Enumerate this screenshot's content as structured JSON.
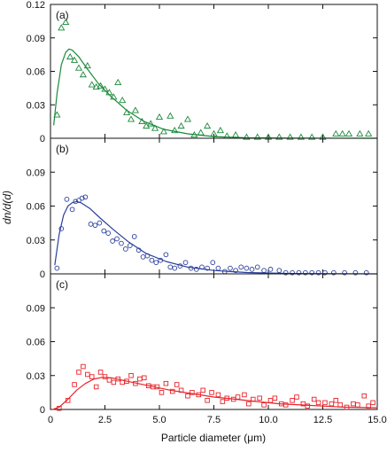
{
  "chart_data": {
    "type": "scatter",
    "xlabel": "Particle diameter (μm)",
    "ylabel": "dn/d(d)",
    "xlim": [
      0,
      15
    ],
    "ylim": [
      0,
      0.12
    ],
    "x_ticks": [
      0,
      2.5,
      5.0,
      7.5,
      10.0,
      12.5,
      15.0
    ],
    "x_tick_labels": [
      "0",
      "2.5",
      "5.0",
      "7.5",
      "10.0",
      "12.5",
      "15.0"
    ],
    "grid": false,
    "panels": [
      {
        "label": "(a)",
        "marker": "triangle",
        "color": "#1a8a3a",
        "y_ticks": [
          0,
          0.03,
          0.06,
          0.09,
          0.12
        ],
        "y_tick_labels": [
          "0",
          "0.03",
          "0.06",
          "0.09",
          "0.12"
        ],
        "points": [
          [
            0.3,
            0.021
          ],
          [
            0.5,
            0.099
          ],
          [
            0.7,
            0.104
          ],
          [
            0.9,
            0.073
          ],
          [
            1.1,
            0.07
          ],
          [
            1.3,
            0.063
          ],
          [
            1.5,
            0.057
          ],
          [
            1.7,
            0.065
          ],
          [
            1.9,
            0.048
          ],
          [
            2.1,
            0.046
          ],
          [
            2.3,
            0.047
          ],
          [
            2.5,
            0.044
          ],
          [
            2.7,
            0.041
          ],
          [
            2.9,
            0.037
          ],
          [
            3.1,
            0.05
          ],
          [
            3.3,
            0.034
          ],
          [
            3.5,
            0.023
          ],
          [
            3.7,
            0.017
          ],
          [
            3.9,
            0.025
          ],
          [
            4.2,
            0.015
          ],
          [
            4.4,
            0.011
          ],
          [
            4.6,
            0.013
          ],
          [
            4.8,
            0.009
          ],
          [
            5.0,
            0.019
          ],
          [
            5.2,
            0.006
          ],
          [
            5.5,
            0.02
          ],
          [
            5.7,
            0.007
          ],
          [
            6.0,
            0.011
          ],
          [
            6.3,
            0.017
          ],
          [
            6.6,
            0.003
          ],
          [
            6.9,
            0.005
          ],
          [
            7.2,
            0.011
          ],
          [
            7.5,
            0.004
          ],
          [
            7.8,
            0.007
          ],
          [
            8.1,
            0.002
          ],
          [
            8.5,
            0.003
          ],
          [
            9.0,
            0.001
          ],
          [
            9.5,
            0.001
          ],
          [
            10.0,
            0.001
          ],
          [
            10.5,
            0.001
          ],
          [
            11.0,
            0.001
          ],
          [
            11.5,
            0.001
          ],
          [
            12.0,
            0.001
          ],
          [
            12.5,
            0.001
          ],
          [
            13.1,
            0.004
          ],
          [
            13.4,
            0.004
          ],
          [
            13.7,
            0.004
          ],
          [
            14.2,
            0.004
          ],
          [
            14.6,
            0.004
          ]
        ],
        "fit": [
          [
            0.15,
            0.012
          ],
          [
            0.3,
            0.04
          ],
          [
            0.5,
            0.066
          ],
          [
            0.7,
            0.077
          ],
          [
            0.85,
            0.08
          ],
          [
            1.0,
            0.079
          ],
          [
            1.3,
            0.073
          ],
          [
            1.7,
            0.062
          ],
          [
            2.2,
            0.049
          ],
          [
            2.8,
            0.037
          ],
          [
            3.5,
            0.025
          ],
          [
            4.3,
            0.015
          ],
          [
            5.2,
            0.008
          ],
          [
            6.3,
            0.004
          ],
          [
            7.5,
            0.0015
          ],
          [
            9.0,
            0.0004
          ],
          [
            11.0,
            0.0001
          ],
          [
            15.0,
            0.0
          ]
        ]
      },
      {
        "label": "(b)",
        "marker": "circle",
        "color": "#2a3f9c",
        "y_ticks": [
          0,
          0.03,
          0.06,
          0.09
        ],
        "y_tick_labels": [
          "0",
          "0.03",
          "0.06",
          "0.09"
        ],
        "points": [
          [
            0.3,
            0.005
          ],
          [
            0.5,
            0.04
          ],
          [
            0.75,
            0.066
          ],
          [
            1.0,
            0.057
          ],
          [
            1.15,
            0.064
          ],
          [
            1.3,
            0.065
          ],
          [
            1.45,
            0.067
          ],
          [
            1.6,
            0.068
          ],
          [
            1.85,
            0.044
          ],
          [
            2.05,
            0.043
          ],
          [
            2.25,
            0.045
          ],
          [
            2.45,
            0.038
          ],
          [
            2.65,
            0.036
          ],
          [
            2.85,
            0.029
          ],
          [
            3.05,
            0.031
          ],
          [
            3.25,
            0.027
          ],
          [
            3.45,
            0.022
          ],
          [
            3.65,
            0.025
          ],
          [
            3.85,
            0.033
          ],
          [
            4.05,
            0.021
          ],
          [
            4.25,
            0.015
          ],
          [
            4.45,
            0.016
          ],
          [
            4.65,
            0.012
          ],
          [
            4.85,
            0.01
          ],
          [
            5.05,
            0.012
          ],
          [
            5.3,
            0.017
          ],
          [
            5.5,
            0.006
          ],
          [
            5.7,
            0.005
          ],
          [
            5.95,
            0.007
          ],
          [
            6.2,
            0.01
          ],
          [
            6.45,
            0.005
          ],
          [
            6.7,
            0.004
          ],
          [
            6.95,
            0.006
          ],
          [
            7.2,
            0.005
          ],
          [
            7.45,
            0.01
          ],
          [
            7.7,
            0.005
          ],
          [
            8.0,
            0.002
          ],
          [
            8.25,
            0.005
          ],
          [
            8.5,
            0.003
          ],
          [
            8.75,
            0.006
          ],
          [
            9.0,
            0.005
          ],
          [
            9.25,
            0.004
          ],
          [
            9.5,
            0.006
          ],
          [
            9.8,
            0.003
          ],
          [
            10.1,
            0.004
          ],
          [
            10.5,
            0.003
          ],
          [
            10.8,
            0.001
          ],
          [
            11.1,
            0.001
          ],
          [
            11.4,
            0.001
          ],
          [
            11.7,
            0.001
          ],
          [
            12.0,
            0.001
          ],
          [
            12.3,
            0.001
          ],
          [
            12.6,
            0.001
          ],
          [
            13.0,
            0.001
          ],
          [
            13.5,
            0.001
          ],
          [
            14.0,
            0.001
          ],
          [
            14.5,
            0.001
          ]
        ],
        "fit": [
          [
            0.2,
            0.008
          ],
          [
            0.4,
            0.035
          ],
          [
            0.6,
            0.052
          ],
          [
            0.8,
            0.06
          ],
          [
            1.0,
            0.063
          ],
          [
            1.2,
            0.064
          ],
          [
            1.4,
            0.063
          ],
          [
            1.8,
            0.058
          ],
          [
            2.3,
            0.049
          ],
          [
            2.9,
            0.039
          ],
          [
            3.6,
            0.028
          ],
          [
            4.4,
            0.018
          ],
          [
            5.3,
            0.011
          ],
          [
            6.3,
            0.006
          ],
          [
            7.5,
            0.003
          ],
          [
            9.0,
            0.0012
          ],
          [
            11.0,
            0.0003
          ],
          [
            15.0,
            0.0
          ]
        ]
      },
      {
        "label": "(c)",
        "marker": "square",
        "color": "#e8232a",
        "y_ticks": [
          0,
          0.03,
          0.06,
          0.09
        ],
        "y_tick_labels": [
          "0",
          "0.03",
          "0.06",
          "0.09"
        ],
        "points": [
          [
            0.4,
            0.001
          ],
          [
            0.8,
            0.008
          ],
          [
            1.1,
            0.022
          ],
          [
            1.3,
            0.033
          ],
          [
            1.5,
            0.038
          ],
          [
            1.7,
            0.031
          ],
          [
            1.9,
            0.029
          ],
          [
            2.1,
            0.02
          ],
          [
            2.3,
            0.033
          ],
          [
            2.5,
            0.029
          ],
          [
            2.7,
            0.026
          ],
          [
            2.9,
            0.024
          ],
          [
            3.1,
            0.027
          ],
          [
            3.3,
            0.024
          ],
          [
            3.5,
            0.025
          ],
          [
            3.7,
            0.03
          ],
          [
            3.9,
            0.023
          ],
          [
            4.1,
            0.027
          ],
          [
            4.3,
            0.028
          ],
          [
            4.5,
            0.021
          ],
          [
            4.7,
            0.02
          ],
          [
            4.9,
            0.02
          ],
          [
            5.1,
            0.015
          ],
          [
            5.3,
            0.023
          ],
          [
            5.6,
            0.016
          ],
          [
            5.8,
            0.022
          ],
          [
            6.0,
            0.017
          ],
          [
            6.3,
            0.012
          ],
          [
            6.5,
            0.015
          ],
          [
            6.8,
            0.013
          ],
          [
            7.0,
            0.017
          ],
          [
            7.2,
            0.008
          ],
          [
            7.4,
            0.015
          ],
          [
            7.7,
            0.013
          ],
          [
            7.9,
            0.007
          ],
          [
            8.1,
            0.01
          ],
          [
            8.4,
            0.009
          ],
          [
            8.6,
            0.011
          ],
          [
            8.9,
            0.013
          ],
          [
            9.1,
            0.005
          ],
          [
            9.3,
            0.009
          ],
          [
            9.6,
            0.01
          ],
          [
            9.8,
            0.004
          ],
          [
            10.1,
            0.008
          ],
          [
            10.3,
            0.01
          ],
          [
            10.6,
            0.005
          ],
          [
            10.8,
            0.004
          ],
          [
            11.1,
            0.008
          ],
          [
            11.3,
            0.011
          ],
          [
            11.6,
            0.005
          ],
          [
            11.8,
            0.003
          ],
          [
            12.1,
            0.009
          ],
          [
            12.3,
            0.006
          ],
          [
            12.6,
            0.006
          ],
          [
            12.9,
            0.005
          ],
          [
            13.1,
            0.008
          ],
          [
            13.3,
            0.004
          ],
          [
            13.6,
            0.002
          ],
          [
            13.9,
            0.005
          ],
          [
            14.1,
            0.004
          ],
          [
            14.4,
            0.012
          ],
          [
            14.6,
            0.003
          ],
          [
            14.8,
            0.006
          ]
        ],
        "fit": [
          [
            0.1,
            0.0
          ],
          [
            0.4,
            0.002
          ],
          [
            0.8,
            0.009
          ],
          [
            1.2,
            0.017
          ],
          [
            1.6,
            0.023
          ],
          [
            2.0,
            0.027
          ],
          [
            2.4,
            0.0285
          ],
          [
            2.8,
            0.028
          ],
          [
            3.5,
            0.025
          ],
          [
            4.5,
            0.021
          ],
          [
            5.5,
            0.017
          ],
          [
            6.5,
            0.014
          ],
          [
            7.5,
            0.011
          ],
          [
            8.5,
            0.009
          ],
          [
            9.5,
            0.007
          ],
          [
            10.5,
            0.005
          ],
          [
            11.5,
            0.004
          ],
          [
            12.5,
            0.003
          ],
          [
            13.5,
            0.002
          ],
          [
            15.0,
            0.0015
          ]
        ]
      }
    ]
  }
}
